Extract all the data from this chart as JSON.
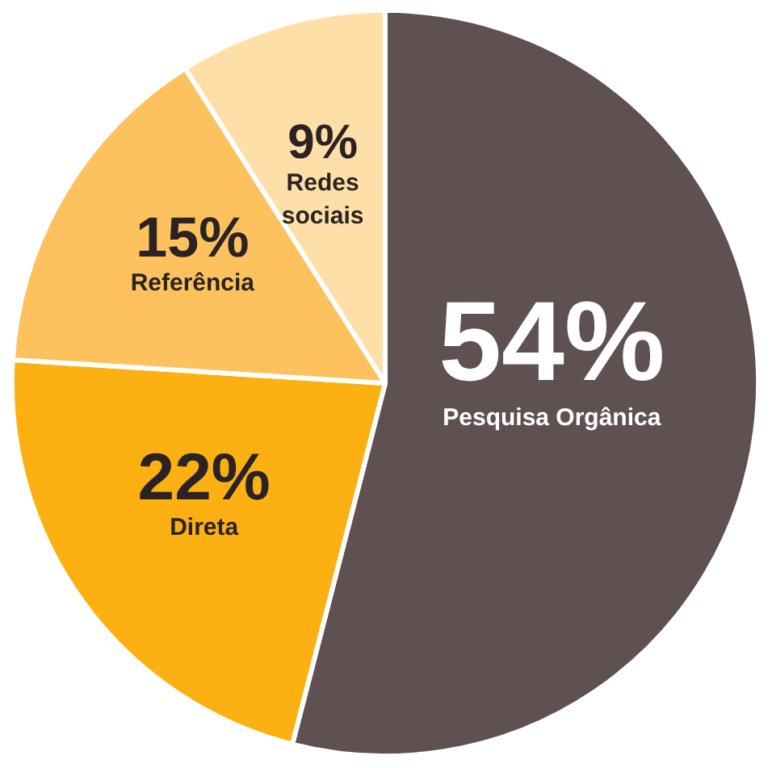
{
  "chart_data": {
    "type": "pie",
    "categories": [
      "Pesquisa Orgânica",
      "Direta",
      "Referência",
      "Redes sociais"
    ],
    "values": [
      54,
      22,
      15,
      9
    ],
    "value_labels": [
      "54%",
      "22%",
      "15%",
      "9%"
    ],
    "colors": [
      "#5f5152",
      "#fdb012",
      "#fdc25e",
      "#fedfa7"
    ]
  }
}
